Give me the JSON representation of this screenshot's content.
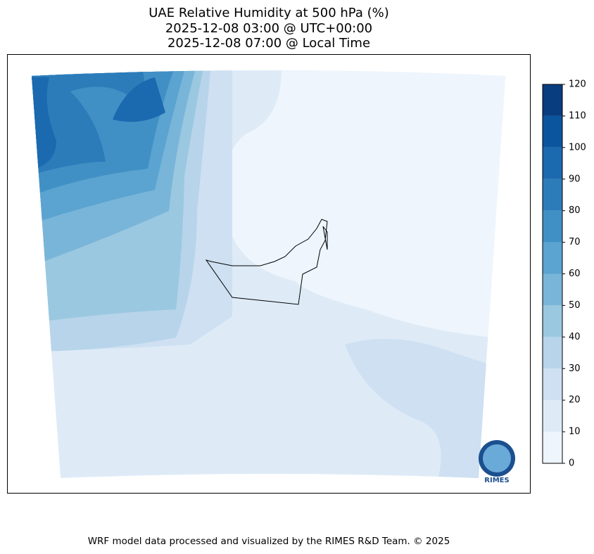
{
  "chart_data": {
    "type": "contour-map",
    "title": [
      "UAE Relative Humidity at 500 hPa (%)",
      "2025-12-08 03:00 @ UTC+00:00",
      "2025-12-08 07:00 @ Local Time"
    ],
    "clim": [
      0,
      120
    ],
    "cticks": [
      0,
      10,
      20,
      30,
      40,
      50,
      60,
      70,
      80,
      90,
      100,
      110,
      120
    ],
    "colors": [
      "#eef5fc",
      "#deebf7",
      "#cee0f2",
      "#b7d4ea",
      "#9ac8e0",
      "#79b5d9",
      "#5ba3d0",
      "#4190c5",
      "#2c7cba",
      "#1b69af",
      "#0b559f",
      "#083d7f"
    ],
    "logo_text": "RIMES",
    "caption": "WRF model data processed and visualized by the RIMES R&D Team. © 2025"
  }
}
